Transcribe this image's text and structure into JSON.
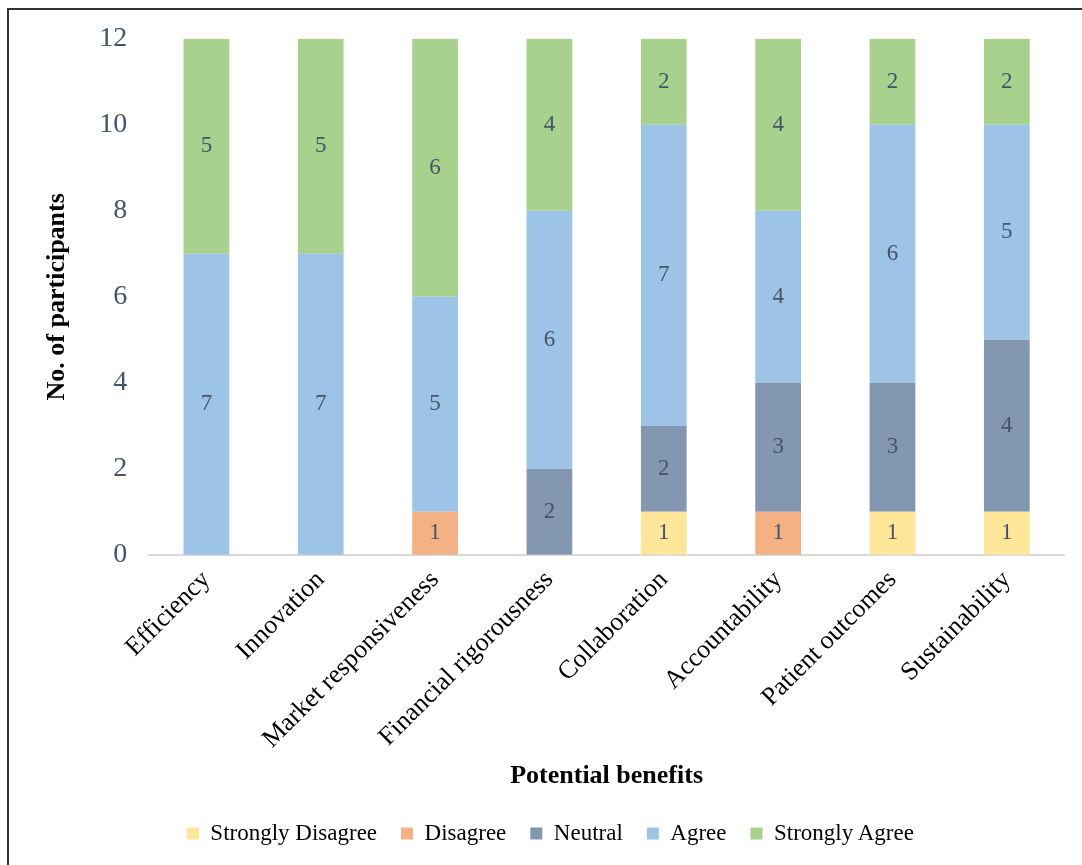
{
  "chart_data": {
    "type": "bar",
    "stacked": true,
    "xlabel": "Potential benefits",
    "ylabel": "No. of participants",
    "categories": [
      "Efficiency",
      "Innovation",
      "Market responsiveness",
      "Financial rigorousness",
      "Collaboration",
      "Accountability",
      "Patient outcomes",
      "Sustainability"
    ],
    "series": [
      {
        "name": "Strongly Disagree",
        "color": "#ffe699",
        "values": [
          null,
          null,
          null,
          null,
          1,
          null,
          1,
          1
        ]
      },
      {
        "name": "Disagree",
        "color": "#f4b183",
        "values": [
          null,
          null,
          1,
          null,
          null,
          1,
          null,
          null
        ]
      },
      {
        "name": "Neutral",
        "color": "#8497b0",
        "values": [
          null,
          null,
          null,
          2,
          2,
          3,
          3,
          4
        ]
      },
      {
        "name": "Agree",
        "color": "#9dc3e6",
        "values": [
          7,
          7,
          5,
          6,
          7,
          4,
          6,
          5
        ]
      },
      {
        "name": "Strongly Agree",
        "color": "#a9d18e",
        "values": [
          5,
          5,
          6,
          4,
          2,
          4,
          2,
          2
        ]
      }
    ],
    "ylim": [
      0,
      12
    ],
    "yticks": [
      0,
      2,
      4,
      6,
      8,
      10,
      12
    ],
    "grid": false,
    "legend": "bottom",
    "data_labels": true
  }
}
